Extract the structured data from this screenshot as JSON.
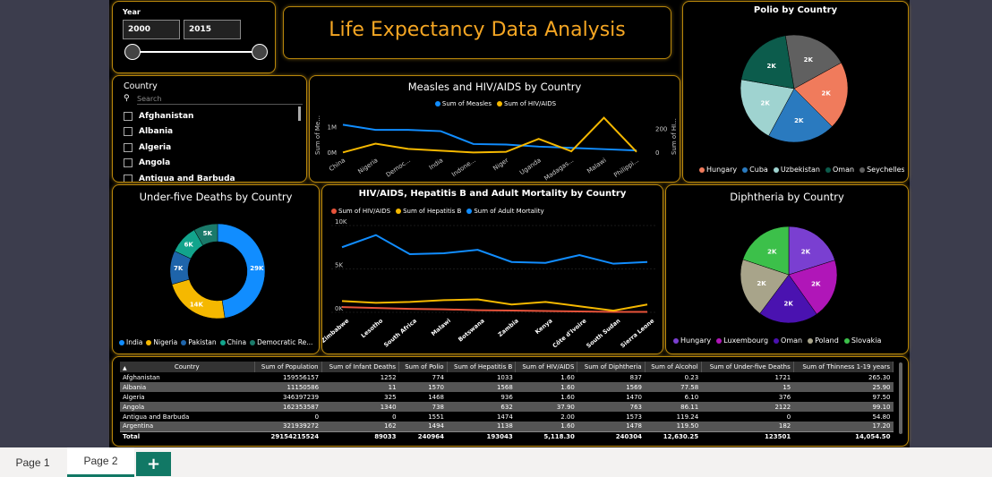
{
  "slicer_year": {
    "label": "Year",
    "from": "2000",
    "to": "2015"
  },
  "header": {
    "title": "Life Expectancy Data Analysis"
  },
  "slicer_country": {
    "label": "Country",
    "search_placeholder": "Search",
    "items": [
      "Afghanistan",
      "Albania",
      "Algeria",
      "Angola",
      "Antigua and Barbuda"
    ]
  },
  "colors": {
    "accent": "#b8860b",
    "title_orange": "#f5a623",
    "blue": "#118dff",
    "yellow": "#f5b800",
    "red": "#e8533a"
  },
  "measles_chart": {
    "title": "Measles and HIV/AIDS by Country",
    "legend": [
      "Sum of Measles",
      "Sum of  HIV/AIDS"
    ],
    "ylabel_left": "Sum of Me...",
    "ylabel_right": "Sum of HI...",
    "left_ticks": [
      "1M",
      "0M"
    ],
    "right_ticks": [
      "200",
      "0"
    ]
  },
  "hiv_chart": {
    "title": "HIV/AIDS, Hepatitis B and Adult Mortality by Country",
    "legend": [
      "Sum of  HIV/AIDS",
      "Sum of Hepatitis B",
      "Sum of Adult Mortality"
    ],
    "y_ticks": [
      "10K",
      "5K",
      "0K"
    ]
  },
  "under5_chart": {
    "title": "Under-five Deaths by Country",
    "legend": [
      "India",
      "Nigeria",
      "Pakistan",
      "China",
      "Democratic Re..."
    ]
  },
  "polio_chart": {
    "title": "Polio by Country",
    "legend": [
      "Hungary",
      "Cuba",
      "Uzbekistan",
      "Oman",
      "Seychelles"
    ]
  },
  "diph_chart": {
    "title": "Diphtheria by Country",
    "legend": [
      "Hungary",
      "Luxembourg",
      "Oman",
      "Poland",
      "Slovakia"
    ]
  },
  "chart_data": [
    {
      "type": "line",
      "title": "Measles and HIV/AIDS by Country",
      "categories": [
        "China",
        "Nigeria",
        "Democ...",
        "India",
        "Indone...",
        "Niger",
        "Uganda",
        "Madagas...",
        "Malawi",
        "Philippi..."
      ],
      "series": [
        {
          "name": "Sum of Measles",
          "axis": "left",
          "color": "#118dff",
          "values": [
            1100000,
            900000,
            900000,
            850000,
            350000,
            330000,
            250000,
            200000,
            150000,
            100000
          ]
        },
        {
          "name": "Sum of  HIV/AIDS",
          "axis": "right",
          "color": "#f5b800",
          "values": [
            5,
            80,
            35,
            20,
            5,
            10,
            120,
            15,
            300,
            10
          ]
        }
      ],
      "ylim_left": [
        0,
        1600000
      ],
      "ylim_right": [
        0,
        350
      ]
    },
    {
      "type": "line",
      "title": "HIV/AIDS, Hepatitis B and Adult Mortality by Country",
      "categories": [
        "Zimbabwe",
        "Lesotho",
        "South Africa",
        "Malawi",
        "Botswana",
        "Zambia",
        "Kenya",
        "Côte d'Ivoire",
        "South Sudan",
        "Sierra Leone"
      ],
      "series": [
        {
          "name": "Sum of  HIV/AIDS",
          "color": "#e8533a",
          "values": [
            600,
            500,
            400,
            350,
            250,
            200,
            150,
            100,
            50,
            50
          ]
        },
        {
          "name": "Sum of Hepatitis B",
          "color": "#f5b800",
          "values": [
            1300,
            1100,
            1200,
            1400,
            1500,
            900,
            1200,
            700,
            200,
            900
          ]
        },
        {
          "name": "Sum of Adult Mortality",
          "color": "#118dff",
          "values": [
            7500,
            8900,
            6700,
            6800,
            7200,
            5800,
            5700,
            6600,
            5600,
            5800
          ]
        }
      ],
      "ylim": [
        0,
        10000
      ]
    },
    {
      "type": "pie",
      "title": "Under-five Deaths by Country",
      "donut": true,
      "categories": [
        "India",
        "Nigeria",
        "Pakistan",
        "China",
        "Democratic Re..."
      ],
      "labels": [
        "29K",
        "14K",
        "7K",
        "6K",
        "5K"
      ],
      "values": [
        29000,
        14000,
        7000,
        6000,
        5000
      ],
      "colors": [
        "#118dff",
        "#f5b800",
        "#1e64aa",
        "#12a48c",
        "#1a7a6a"
      ]
    },
    {
      "type": "pie",
      "title": "Polio by Country",
      "categories": [
        "Hungary",
        "Cuba",
        "Uzbekistan",
        "Oman",
        "Seychelles"
      ],
      "labels": [
        "2K",
        "2K",
        "2K",
        "2K",
        "2K"
      ],
      "values": [
        1570,
        1560,
        1520,
        1510,
        1500
      ],
      "colors": [
        "#f07b5c",
        "#2a7abf",
        "#9fd3d0",
        "#0c5c4c",
        "#606060"
      ]
    },
    {
      "type": "pie",
      "title": "Diphtheria by Country",
      "categories": [
        "Hungary",
        "Luxembourg",
        "Oman",
        "Poland",
        "Slovakia"
      ],
      "labels": [
        "2K",
        "2K",
        "2K",
        "2K",
        "2K"
      ],
      "values": [
        1570,
        1565,
        1560,
        1555,
        1550
      ],
      "colors": [
        "#7a3fd1",
        "#b016b8",
        "#4a12b0",
        "#a8a48a",
        "#3cc04a"
      ]
    }
  ],
  "table": {
    "columns": [
      "Country",
      "Sum of Population",
      "Sum of Infant Deaths",
      "Sum of Polio",
      "Sum of Hepatitis B",
      "Sum of HIV/AIDS",
      "Sum of Diphtheria",
      "Sum of Alcohol",
      "Sum of Under-five Deaths",
      "Sum of Thinness 1-19 years"
    ],
    "rows": [
      [
        "Afghanistan",
        "159556157",
        "1252",
        "774",
        "1033",
        "1.60",
        "837",
        "0.23",
        "1721",
        "265.30"
      ],
      [
        "Albania",
        "11150586",
        "11",
        "1570",
        "1568",
        "1.60",
        "1569",
        "77.58",
        "15",
        "25.90"
      ],
      [
        "Algeria",
        "346397239",
        "325",
        "1468",
        "936",
        "1.60",
        "1470",
        "6.10",
        "376",
        "97.50"
      ],
      [
        "Angola",
        "162353587",
        "1340",
        "738",
        "632",
        "37.90",
        "763",
        "86.11",
        "2122",
        "99.10"
      ],
      [
        "Antigua and Barbuda",
        "0",
        "0",
        "1551",
        "1474",
        "2.00",
        "1573",
        "119.24",
        "0",
        "54.80"
      ],
      [
        "Argentina",
        "321939272",
        "162",
        "1494",
        "1138",
        "1.60",
        "1478",
        "119.50",
        "182",
        "17.20"
      ]
    ],
    "total": [
      "Total",
      "29154215524",
      "89033",
      "240964",
      "193043",
      "5,118.30",
      "240304",
      "12,630.25",
      "123501",
      "14,054.50"
    ]
  },
  "tabs": {
    "page1": "Page 1",
    "page2": "Page 2",
    "add": "+"
  }
}
